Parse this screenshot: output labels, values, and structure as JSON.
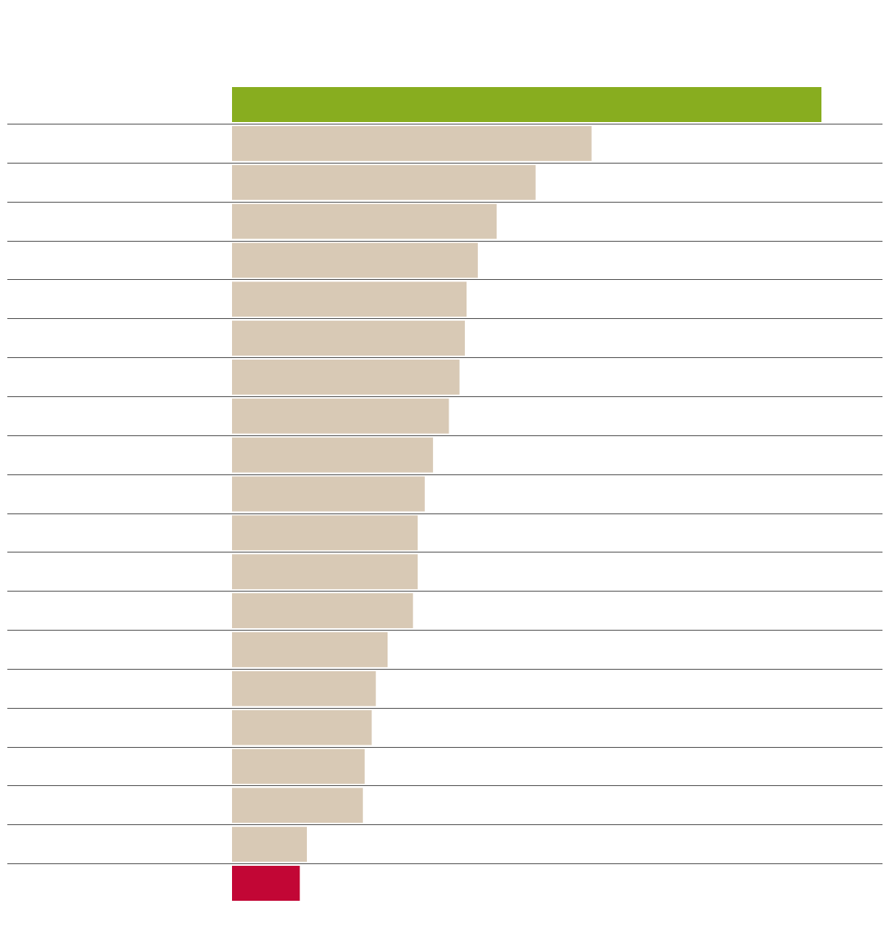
{
  "chart_data": {
    "type": "bar",
    "orientation": "horizontal",
    "categories": [
      "",
      "",
      "",
      "",
      "",
      "",
      "",
      "",
      "",
      "",
      "",
      "",
      "",
      "",
      "",
      "",
      "",
      "",
      "",
      "",
      ""
    ],
    "values": [
      100,
      61,
      51.5,
      44.9,
      41.7,
      39.8,
      39.5,
      38.6,
      36.8,
      34.1,
      32.7,
      31.5,
      31.5,
      30.7,
      26.4,
      24.4,
      23.7,
      22.5,
      22.2,
      12.7,
      11.5
    ],
    "xlim": [
      0,
      100
    ],
    "grid": false,
    "legend": "none",
    "colors": {
      "highlight_top": "#88ad1f",
      "default": "#d8c9b5",
      "highlight_bottom": "#c20635",
      "row_separator": "#555555"
    }
  }
}
